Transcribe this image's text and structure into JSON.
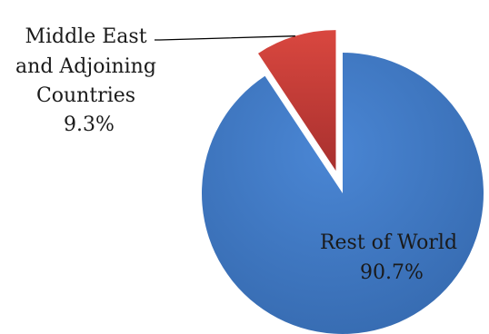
{
  "chart_data": {
    "type": "pie",
    "title": "",
    "slices": [
      {
        "name": "Middle East and Adjoining Countries",
        "label_lines": [
          "Middle East",
          "and Adjoining",
          "Countries"
        ],
        "percent_label": "9.3%",
        "value": 9.3,
        "color": "#C0393B",
        "exploded": true
      },
      {
        "name": "Rest of World",
        "label_lines": [
          "Rest of World"
        ],
        "percent_label": "90.7%",
        "value": 90.7,
        "color": "#3E78C2",
        "exploded": false
      }
    ],
    "legend": "none",
    "labels_position": "data labels with leader line for small slice"
  }
}
